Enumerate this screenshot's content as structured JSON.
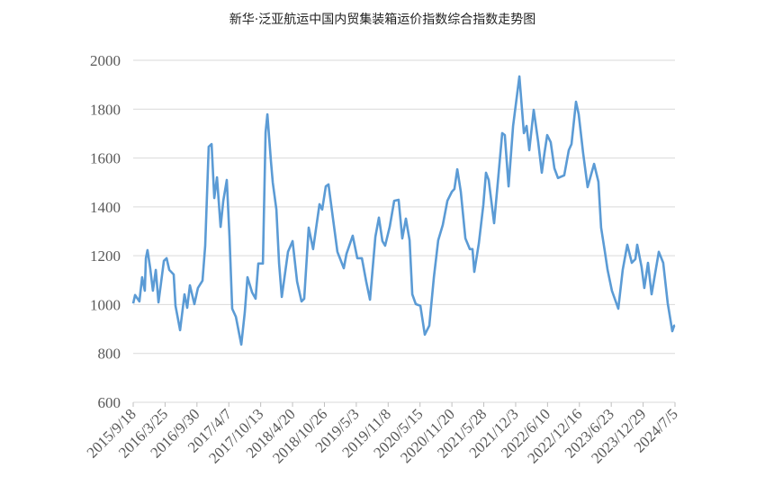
{
  "chart_data": {
    "type": "line",
    "title": "新华·泛亚航运中国内贸集装箱运价指数综合指数走势图",
    "xlabel": "",
    "ylabel": "",
    "ylim": [
      600,
      2000
    ],
    "yticks": [
      600,
      800,
      1000,
      1200,
      1400,
      1600,
      1800,
      2000
    ],
    "xlim": [
      "2015-09-18",
      "2024-07-05"
    ],
    "xtick_labels": [
      "2015/9/18",
      "2016/3/25",
      "2016/9/30",
      "2017/4/7",
      "2017/10/13",
      "2018/4/20",
      "2018/10/26",
      "2019/5/3",
      "2019/11/8",
      "2020/5/15",
      "2020/11/20",
      "2021/5/28",
      "2021/12/3",
      "2022/6/10",
      "2022/12/16",
      "2023/6/23",
      "2023/12/29",
      "2024/7/5"
    ],
    "grid": "horizontal",
    "legend": "none",
    "colors": {
      "line": "#5b9bd5",
      "grid": "#d9d9d9"
    },
    "series": [
      {
        "points": [
          [
            "2015-09-18",
            1005
          ],
          [
            "2015-09-29",
            1039
          ],
          [
            "2015-10-25",
            1013
          ],
          [
            "2015-11-10",
            1112
          ],
          [
            "2015-11-26",
            1057
          ],
          [
            "2015-12-02",
            1190
          ],
          [
            "2015-12-12",
            1223
          ],
          [
            "2015-12-28",
            1149
          ],
          [
            "2016-01-13",
            1057
          ],
          [
            "2016-01-30",
            1142
          ],
          [
            "2016-02-15",
            1009
          ],
          [
            "2016-03-18",
            1179
          ],
          [
            "2016-04-03",
            1190
          ],
          [
            "2016-04-19",
            1142
          ],
          [
            "2016-05-15",
            1123
          ],
          [
            "2016-05-26",
            995
          ],
          [
            "2016-06-22",
            895
          ],
          [
            "2016-07-18",
            1042
          ],
          [
            "2016-08-03",
            987
          ],
          [
            "2016-08-19",
            1079
          ],
          [
            "2016-09-15",
            1002
          ],
          [
            "2016-10-06",
            1068
          ],
          [
            "2016-11-02",
            1098
          ],
          [
            "2016-11-18",
            1241
          ],
          [
            "2016-12-09",
            1646
          ],
          [
            "2016-12-26",
            1657
          ],
          [
            "2017-01-11",
            1436
          ],
          [
            "2017-01-27",
            1521
          ],
          [
            "2017-02-17",
            1318
          ],
          [
            "2017-03-05",
            1425
          ],
          [
            "2017-03-26",
            1510
          ],
          [
            "2017-04-11",
            1278
          ],
          [
            "2017-04-27",
            983
          ],
          [
            "2017-05-19",
            950
          ],
          [
            "2017-06-20",
            836
          ],
          [
            "2017-07-11",
            969
          ],
          [
            "2017-07-27",
            1112
          ],
          [
            "2017-08-23",
            1050
          ],
          [
            "2017-09-13",
            1024
          ],
          [
            "2017-09-29",
            1168
          ],
          [
            "2017-10-26",
            1168
          ],
          [
            "2017-11-11",
            1705
          ],
          [
            "2017-11-22",
            1779
          ],
          [
            "2017-12-13",
            1584
          ],
          [
            "2017-12-24",
            1499
          ],
          [
            "2018-01-14",
            1389
          ],
          [
            "2018-01-30",
            1168
          ],
          [
            "2018-02-15",
            1031
          ],
          [
            "2018-03-24",
            1216
          ],
          [
            "2018-04-20",
            1260
          ],
          [
            "2018-05-17",
            1094
          ],
          [
            "2018-06-12",
            1013
          ],
          [
            "2018-06-28",
            1024
          ],
          [
            "2018-07-25",
            1315
          ],
          [
            "2018-08-20",
            1227
          ],
          [
            "2018-09-27",
            1411
          ],
          [
            "2018-10-13",
            1389
          ],
          [
            "2018-11-03",
            1484
          ],
          [
            "2018-11-19",
            1492
          ],
          [
            "2018-12-16",
            1352
          ],
          [
            "2019-01-11",
            1216
          ],
          [
            "2019-02-18",
            1149
          ],
          [
            "2019-03-06",
            1208
          ],
          [
            "2019-04-12",
            1282
          ],
          [
            "2019-05-09",
            1190
          ],
          [
            "2019-06-05",
            1190
          ],
          [
            "2019-07-01",
            1094
          ],
          [
            "2019-07-23",
            1020
          ],
          [
            "2019-08-24",
            1278
          ],
          [
            "2019-09-14",
            1356
          ],
          [
            "2019-10-05",
            1260
          ],
          [
            "2019-10-21",
            1241
          ],
          [
            "2019-11-17",
            1318
          ],
          [
            "2019-12-14",
            1425
          ],
          [
            "2020-01-09",
            1429
          ],
          [
            "2020-01-31",
            1271
          ],
          [
            "2020-02-21",
            1352
          ],
          [
            "2020-03-14",
            1263
          ],
          [
            "2020-03-30",
            1042
          ],
          [
            "2020-04-20",
            1002
          ],
          [
            "2020-05-17",
            995
          ],
          [
            "2020-06-12",
            877
          ],
          [
            "2020-07-09",
            914
          ],
          [
            "2020-08-05",
            1112
          ],
          [
            "2020-08-31",
            1263
          ],
          [
            "2020-09-27",
            1326
          ],
          [
            "2020-10-24",
            1425
          ],
          [
            "2020-11-20",
            1462
          ],
          [
            "2020-12-05",
            1473
          ],
          [
            "2020-12-22",
            1554
          ],
          [
            "2021-01-12",
            1462
          ],
          [
            "2021-02-08",
            1271
          ],
          [
            "2021-03-06",
            1227
          ],
          [
            "2021-03-22",
            1227
          ],
          [
            "2021-04-02",
            1134
          ],
          [
            "2021-04-29",
            1252
          ],
          [
            "2021-05-25",
            1407
          ],
          [
            "2021-06-10",
            1540
          ],
          [
            "2021-06-26",
            1510
          ],
          [
            "2021-07-28",
            1333
          ],
          [
            "2021-08-19",
            1499
          ],
          [
            "2021-09-14",
            1702
          ],
          [
            "2021-09-30",
            1694
          ],
          [
            "2021-10-22",
            1484
          ],
          [
            "2021-11-18",
            1731
          ],
          [
            "2021-12-25",
            1934
          ],
          [
            "2022-01-21",
            1702
          ],
          [
            "2022-02-06",
            1731
          ],
          [
            "2022-02-22",
            1632
          ],
          [
            "2022-03-20",
            1797
          ],
          [
            "2022-04-15",
            1668
          ],
          [
            "2022-05-07",
            1540
          ],
          [
            "2022-05-23",
            1621
          ],
          [
            "2022-06-08",
            1694
          ],
          [
            "2022-06-29",
            1665
          ],
          [
            "2022-07-21",
            1558
          ],
          [
            "2022-08-11",
            1518
          ],
          [
            "2022-09-17",
            1529
          ],
          [
            "2022-10-14",
            1632
          ],
          [
            "2022-10-30",
            1657
          ],
          [
            "2022-11-26",
            1830
          ],
          [
            "2022-12-12",
            1779
          ],
          [
            "2023-01-07",
            1621
          ],
          [
            "2023-02-03",
            1481
          ],
          [
            "2023-03-13",
            1576
          ],
          [
            "2023-04-08",
            1503
          ],
          [
            "2023-04-24",
            1315
          ],
          [
            "2023-05-16",
            1216
          ],
          [
            "2023-06-01",
            1142
          ],
          [
            "2023-06-27",
            1057
          ],
          [
            "2023-08-04",
            983
          ],
          [
            "2023-08-30",
            1142
          ],
          [
            "2023-09-26",
            1245
          ],
          [
            "2023-10-23",
            1171
          ],
          [
            "2023-11-13",
            1186
          ],
          [
            "2023-11-24",
            1245
          ],
          [
            "2023-12-20",
            1153
          ],
          [
            "2024-01-05",
            1068
          ],
          [
            "2024-01-27",
            1171
          ],
          [
            "2024-02-17",
            1042
          ],
          [
            "2024-03-31",
            1216
          ],
          [
            "2024-04-26",
            1171
          ],
          [
            "2024-05-23",
            1006
          ],
          [
            "2024-06-19",
            891
          ],
          [
            "2024-06-30",
            914
          ],
          [
            "2024-07-05",
            915
          ]
        ]
      }
    ]
  }
}
